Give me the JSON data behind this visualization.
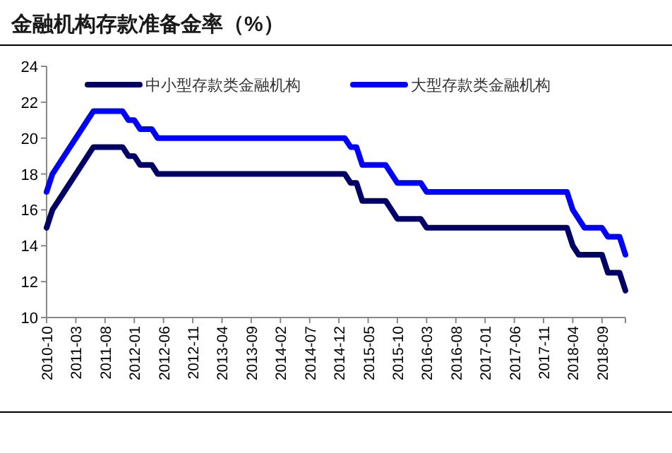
{
  "chart_data": {
    "type": "line",
    "title": "金融机构存款准备金率（%）",
    "legend": "top",
    "grid": false,
    "line_style": "solid",
    "xlim": [
      "2010-10",
      "2019-01"
    ],
    "xticks": [
      "2010-10",
      "2011-03",
      "2011-08",
      "2012-01",
      "2012-06",
      "2012-11",
      "2013-04",
      "2013-09",
      "2014-02",
      "2014-07",
      "2014-12",
      "2015-05",
      "2015-10",
      "2016-03",
      "2016-08",
      "2017-01",
      "2017-06",
      "2017-11",
      "2018-04",
      "2018-09"
    ],
    "ylim": [
      10,
      24
    ],
    "yticks": [
      10,
      12,
      14,
      16,
      18,
      20,
      22,
      24
    ],
    "series": [
      {
        "name": "中小型存款类金融机构",
        "color": "#000066",
        "x": [
          "2010-10",
          "2010-11",
          "2010-12",
          "2011-01",
          "2011-02",
          "2011-03",
          "2011-04",
          "2011-05",
          "2011-06",
          "2011-11",
          "2011-12",
          "2012-01",
          "2012-02",
          "2012-04",
          "2012-05",
          "2015-01",
          "2015-02",
          "2015-03",
          "2015-04",
          "2015-08",
          "2015-09",
          "2015-10",
          "2016-02",
          "2016-03",
          "2018-03",
          "2018-04",
          "2018-05",
          "2018-09",
          "2018-10",
          "2018-12",
          "2019-01"
        ],
        "values": [
          15,
          16,
          16.5,
          17,
          17.5,
          18,
          18.5,
          19,
          19.5,
          19.5,
          19,
          19,
          18.5,
          18.5,
          18,
          18,
          17.5,
          17.5,
          16.5,
          16.5,
          16,
          15.5,
          15.5,
          15,
          15,
          14,
          13.5,
          13.5,
          12.5,
          12.5,
          11.5
        ]
      },
      {
        "name": "大型存款类金融机构",
        "color": "#0000ff",
        "x": [
          "2010-10",
          "2010-11",
          "2010-12",
          "2011-01",
          "2011-02",
          "2011-03",
          "2011-04",
          "2011-05",
          "2011-06",
          "2011-11",
          "2011-12",
          "2012-01",
          "2012-02",
          "2012-04",
          "2012-05",
          "2015-01",
          "2015-02",
          "2015-03",
          "2015-04",
          "2015-08",
          "2015-09",
          "2015-10",
          "2016-02",
          "2016-03",
          "2018-03",
          "2018-04",
          "2018-05",
          "2018-06",
          "2018-09",
          "2018-10",
          "2018-12",
          "2019-01"
        ],
        "values": [
          17,
          18,
          18.5,
          19,
          19.5,
          20,
          20.5,
          21,
          21.5,
          21.5,
          21,
          21,
          20.5,
          20.5,
          20,
          20,
          19.5,
          19.5,
          18.5,
          18.5,
          18,
          17.5,
          17.5,
          17,
          17,
          16,
          15.5,
          15,
          15,
          14.5,
          14.5,
          13.5
        ]
      }
    ]
  }
}
